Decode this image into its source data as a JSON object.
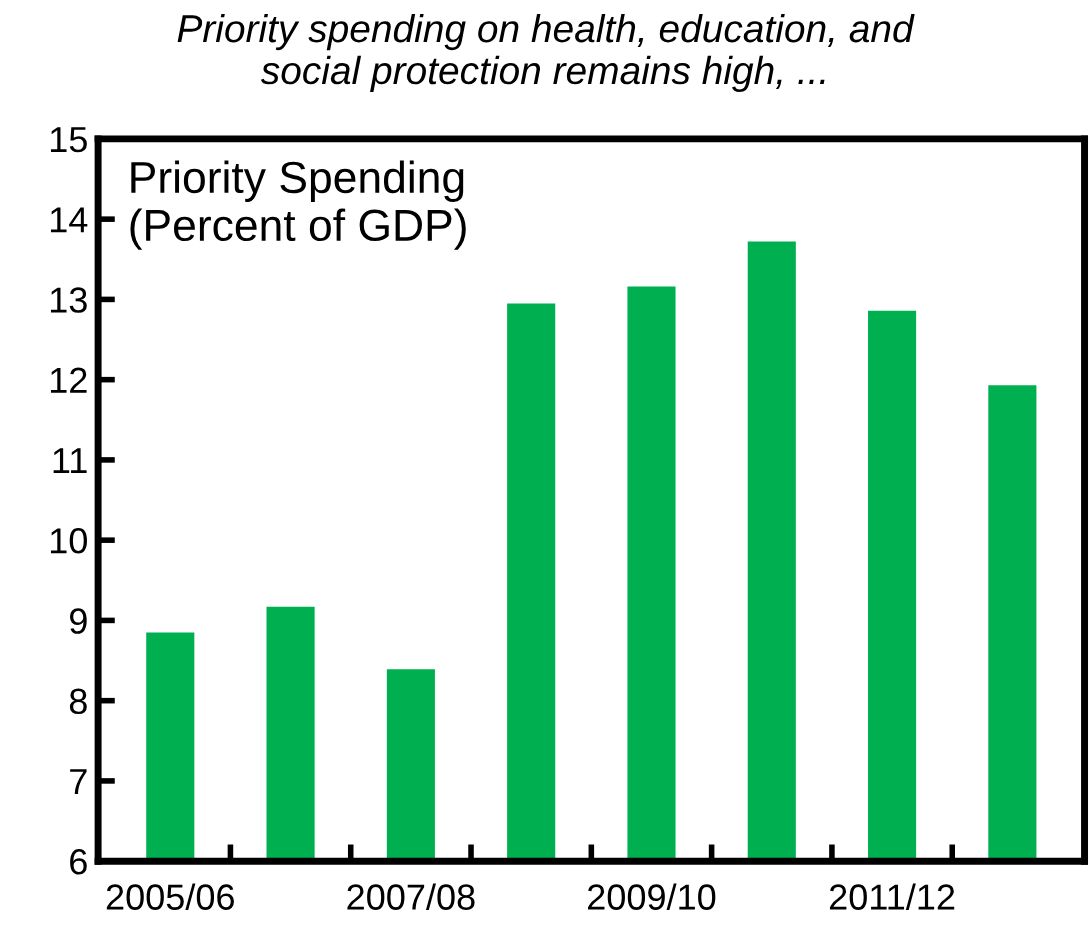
{
  "chart_data": {
    "type": "bar",
    "title": "Priority spending on health, education, and\nsocial protection remains high, ...",
    "annotations": [
      "Priority Spending\n(Percent of GDP)"
    ],
    "categories": [
      "2005/06",
      null,
      "2007/08",
      null,
      "2009/10",
      null,
      "2011/12",
      null
    ],
    "values": [
      8.85,
      9.17,
      8.39,
      12.95,
      13.16,
      13.72,
      12.86,
      11.93
    ],
    "color": "#00b050",
    "ylim": [
      6,
      15
    ],
    "yticks": [
      6,
      7,
      8,
      9,
      10,
      11,
      12,
      13,
      14,
      15
    ],
    "grid": false,
    "legend": false
  }
}
